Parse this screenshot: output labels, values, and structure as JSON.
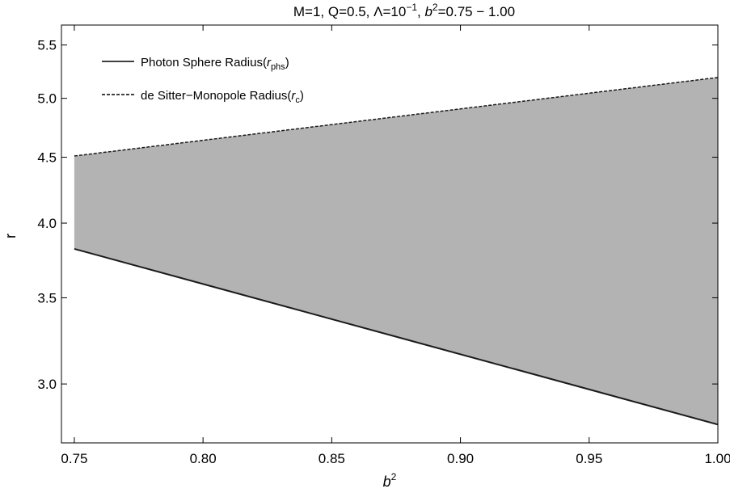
{
  "chart_data": {
    "type": "area",
    "title_parts": {
      "prefix": "M=1, Q=0.5, Λ=10",
      "exp": "−1",
      "mid": ", ",
      "b": "b",
      "b_exp": "2",
      "suffix": "=0.75 − 1.00"
    },
    "xlabel": {
      "base": "b",
      "exp": "2"
    },
    "ylabel": "r",
    "xlim": [
      0.745,
      1.0
    ],
    "ylim": [
      2.7,
      5.7
    ],
    "y_scale": "log",
    "x_ticks": [
      0.75,
      0.8,
      0.85,
      0.9,
      0.95,
      1.0
    ],
    "x_tick_labels": [
      "0.75",
      "0.80",
      "0.85",
      "0.90",
      "0.95",
      "1.00"
    ],
    "y_ticks": [
      3.0,
      3.5,
      4.0,
      4.5,
      5.0,
      5.5
    ],
    "y_tick_labels": [
      "3.0",
      "3.5",
      "4.0",
      "4.5",
      "5.0",
      "5.5"
    ],
    "grid": false,
    "legend_position": "top-left",
    "fill_color": "#b3b3b3",
    "series": [
      {
        "name": "Photon Sphere Radius",
        "name_symbol": "r",
        "name_sub": "phs",
        "style": "solid",
        "x": [
          0.75,
          1.0
        ],
        "y": [
          3.82,
          2.79
        ]
      },
      {
        "name": "de Sitter−Monopole Radius",
        "name_symbol": "r",
        "name_sub": "c",
        "style": "dashed",
        "x": [
          0.75,
          1.0
        ],
        "y": [
          4.51,
          5.19
        ]
      }
    ]
  }
}
